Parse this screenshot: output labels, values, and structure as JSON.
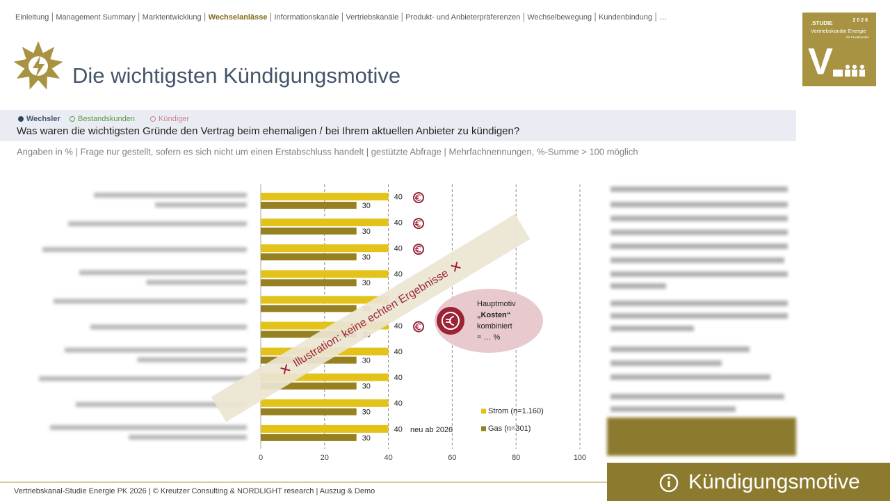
{
  "nav": {
    "items": [
      "Einleitung",
      "Management Summary",
      "Marktentwicklung",
      "Wechselanlässe",
      "Informationskanäle",
      "Vertriebskanäle",
      "Produkt- und Anbieterpräferenzen",
      "Wechselbewegung",
      "Kundenbindung",
      "…"
    ],
    "active": 3
  },
  "badge": {
    "label": ".STUDIE",
    "year": "2026",
    "title": "Vertriebskanäle Energie",
    "subtitle": "für Privatkunden",
    "letter": "V"
  },
  "title": "Die wichtigsten Kündigungsmotive",
  "legend": [
    "Wechsler",
    "Bestandskunden",
    "Kündiger"
  ],
  "question": "Was waren die wichtigsten Gründe den Vertrag beim ehemaligen / bei Ihrem aktuellen Anbieter zu kündigen?",
  "note": "Angaben in % | Frage nur gestellt, sofern es sich nicht um einen Erstabschluss handelt | gestützte Abfrage | Mehrfachnennungen, %-Summe > 100 möglich",
  "chart_data": {
    "type": "bar",
    "orientation": "horizontal",
    "categories": [
      null,
      null,
      null,
      null,
      null,
      null,
      null,
      null,
      null,
      null
    ],
    "series": [
      {
        "name": "Strom (n=1.160)",
        "color": "#e3c21a",
        "values": [
          40,
          40,
          40,
          40,
          40,
          40,
          40,
          40,
          40,
          40
        ]
      },
      {
        "name": "Gas (n=301)",
        "color": "#96801f",
        "values": [
          30,
          30,
          30,
          30,
          30,
          30,
          30,
          30,
          30,
          30
        ]
      }
    ],
    "xlim": [
      0,
      100
    ],
    "xticks": [
      0,
      20,
      40,
      60,
      80,
      100
    ],
    "grid": true,
    "annotations": [
      "neu ab 2026",
      "Illustration: keine echten Ergebnisse"
    ],
    "callout": [
      "Hauptmotiv",
      "„Kosten“",
      "kombiniert",
      "= … %"
    ]
  },
  "footer": "Vertriebskanal-Studie Energie PK 2026 | © Kreutzer Consulting & NORDLIGHT research | Auszug & Demo",
  "section_tag": "Kündigungsmotive"
}
